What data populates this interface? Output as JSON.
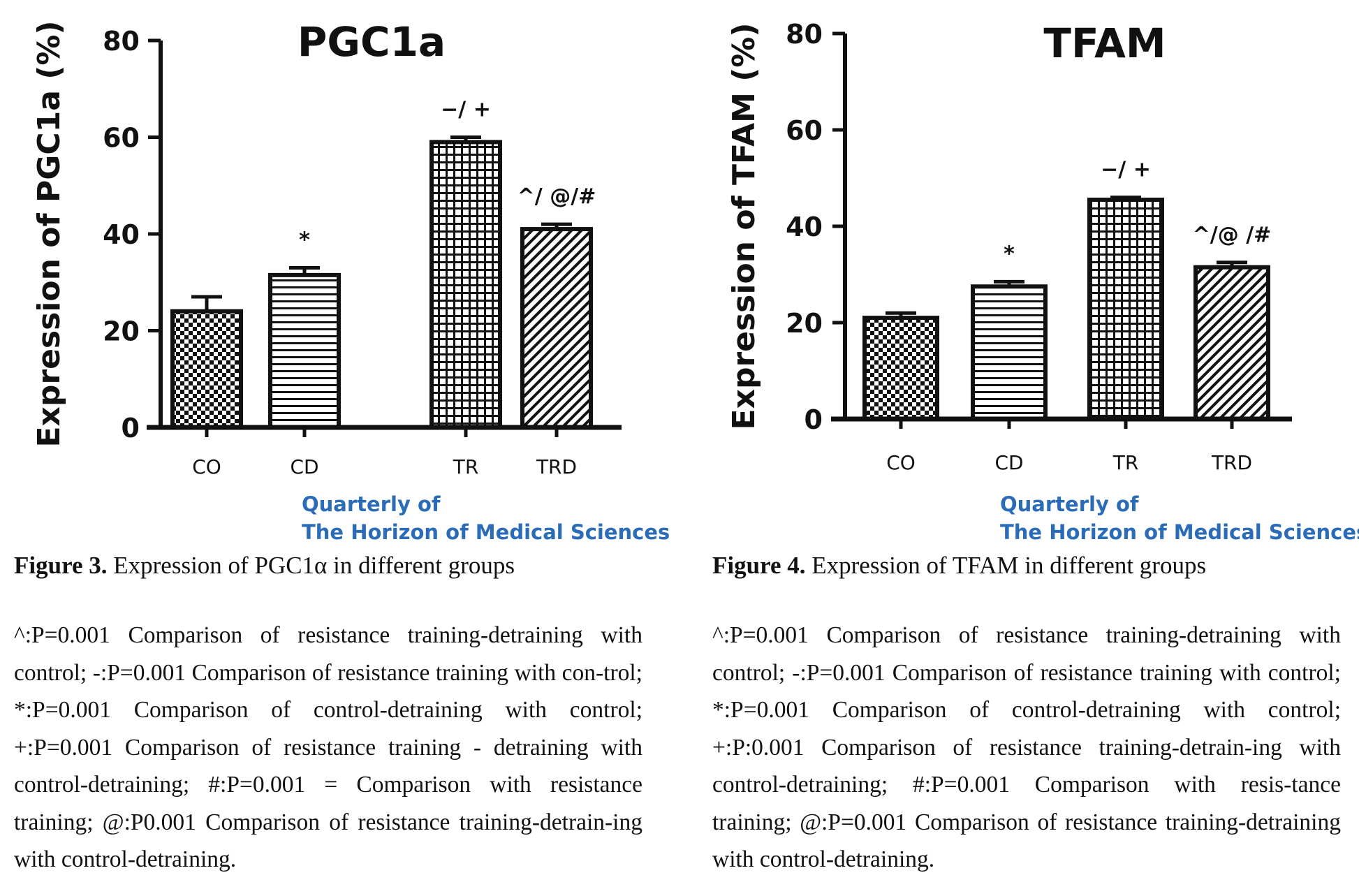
{
  "charts": [
    {
      "watermark": {
        "line1": "Quarterly of",
        "line2": "The Horizon of Medical Sciences"
      },
      "caption": {
        "number": "Figure 3.",
        "text": " Expression of PGC1α in different groups"
      },
      "notes": " ^:P=0.001 Comparison of resistance training-detraining with control; -:P=0.001 Comparison of resistance training with con-trol; *:P=0.001 Comparison of control-detraining with control; +:P=0.001 Comparison of resistance training - detraining with control-detraining; #:P=0.001 = Comparison with resistance training; @:P0.001 Comparison of resistance training-detrain-ing with control-detraining."
    },
    {
      "watermark": {
        "line1": "Quarterly of",
        "line2": "The Horizon of Medical Sciences"
      },
      "caption": {
        "number": "Figure 4.",
        "text": " Expression of TFAM in different groups"
      },
      "notes": "^:P=0.001 Comparison of resistance training-detraining with control; -:P=0.001 Comparison of resistance training with control; *:P=0.001 Comparison of control-detraining with control; +:P:0.001 Comparison of resistance training-detrain-ing with control-detraining; #:P=0.001 Comparison with resis-tance training; @:P=0.001 Comparison of resistance training-detraining with control-detraining."
    }
  ],
  "chart_data": [
    {
      "type": "bar",
      "title": "PGC1a",
      "ylabel": "Expression of PGC1a (%)",
      "xlabel": "",
      "categories": [
        "CO",
        "CD",
        "TR",
        "TRD"
      ],
      "values": [
        24,
        31.5,
        59,
        41
      ],
      "errors": [
        3,
        1.5,
        1,
        1
      ],
      "annotations": [
        "",
        "*",
        "−/ +",
        "^/ @/#"
      ],
      "patterns": [
        "checker",
        "hlines",
        "grid",
        "diag"
      ],
      "ylim": [
        0,
        80
      ],
      "yticks": [
        "0",
        "20",
        "40",
        "60",
        "80"
      ],
      "grid": false
    },
    {
      "type": "bar",
      "title": "TFAM",
      "ylabel": "Expression of TFAM (%)",
      "xlabel": "",
      "categories": [
        "CO",
        "CD",
        "TR",
        "TRD"
      ],
      "values": [
        21,
        27.5,
        45.5,
        31.5
      ],
      "errors": [
        1,
        1,
        0.5,
        1
      ],
      "annotations": [
        "",
        "*",
        "−/ +",
        "^/@ /#"
      ],
      "patterns": [
        "checker",
        "hlines",
        "grid",
        "diag"
      ],
      "ylim": [
        0,
        80
      ],
      "yticks": [
        "0",
        "20",
        "40",
        "60",
        "80"
      ],
      "grid": false
    }
  ]
}
